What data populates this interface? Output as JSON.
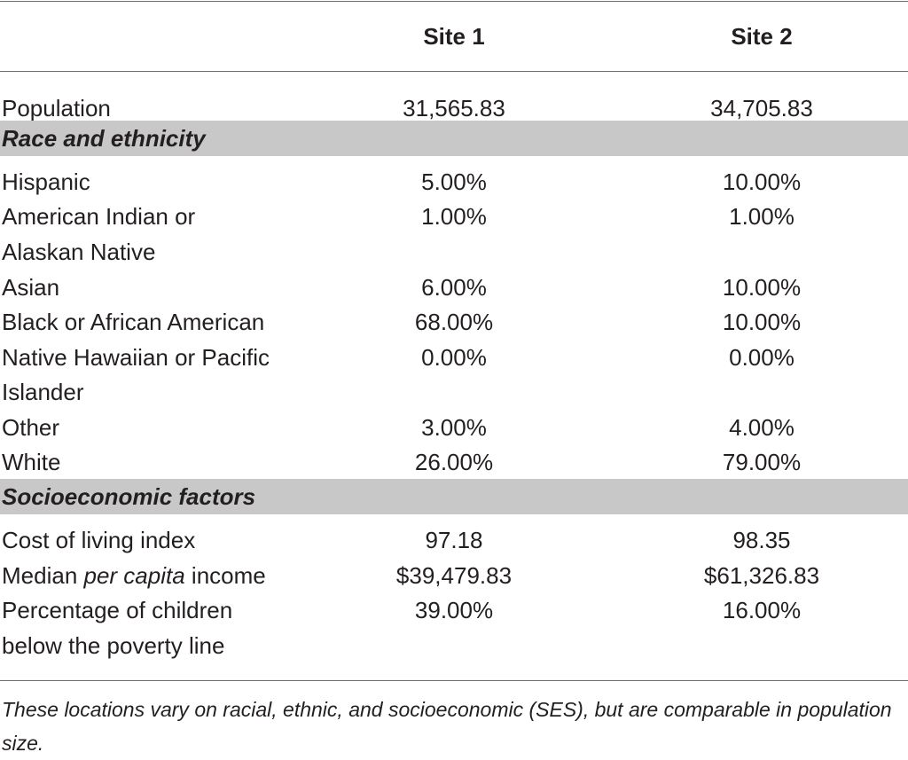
{
  "headers": {
    "col1": "",
    "site1": "Site 1",
    "site2": "Site 2"
  },
  "population": {
    "label": "Population",
    "site1": "31,565.83",
    "site2": "34,705.83"
  },
  "sections": {
    "race": "Race and ethnicity",
    "ses": "Socioeconomic factors"
  },
  "race_rows": [
    {
      "label_line1": "Hispanic",
      "label_line2": "",
      "site1": "5.00%",
      "site2": "10.00%"
    },
    {
      "label_line1": "American Indian or",
      "label_line2": "Alaskan Native",
      "site1": "1.00%",
      "site2": "1.00%"
    },
    {
      "label_line1": "Asian",
      "label_line2": "",
      "site1": "6.00%",
      "site2": "10.00%"
    },
    {
      "label_line1": "Black or African American",
      "label_line2": "",
      "site1": "68.00%",
      "site2": "10.00%"
    },
    {
      "label_line1": "Native Hawaiian or Pacific",
      "label_line2": "Islander",
      "site1": "0.00%",
      "site2": "0.00%"
    },
    {
      "label_line1": "Other",
      "label_line2": "",
      "site1": "3.00%",
      "site2": "4.00%"
    },
    {
      "label_line1": "White",
      "label_line2": "",
      "site1": "26.00%",
      "site2": "79.00%"
    }
  ],
  "ses_rows": [
    {
      "label_line1": "Cost of living index",
      "label_line2": "",
      "site1": "97.18",
      "site2": "98.35"
    },
    {
      "label_pre": "Median ",
      "label_em": "per capita",
      "label_post": " income",
      "site1": "$39,479.83",
      "site2": "$61,326.83"
    },
    {
      "label_line1": "Percentage of children",
      "label_line2": "below the poverty line",
      "site1": "39.00%",
      "site2": "16.00%"
    }
  ],
  "footnote": "These locations vary on racial, ethnic, and socioeconomic (SES), but are comparable in population size."
}
